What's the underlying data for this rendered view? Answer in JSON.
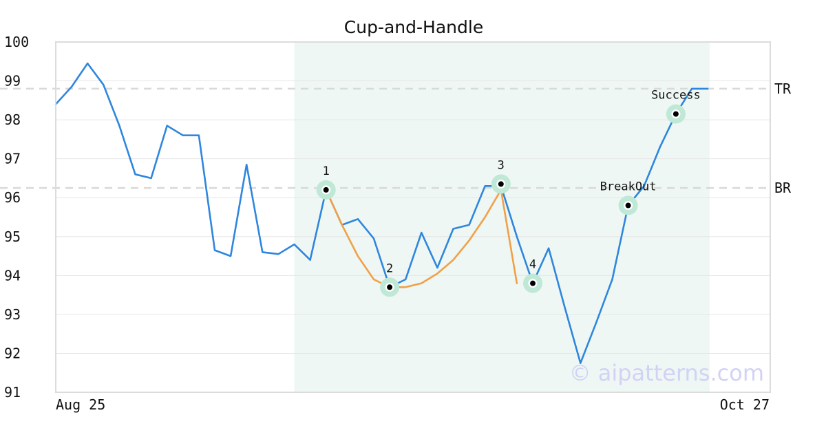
{
  "chart_data": {
    "type": "line",
    "title": "Cup-and-Handle",
    "ylim": [
      91,
      100
    ],
    "yticks": [
      "91",
      "92",
      "93",
      "94",
      "95",
      "96",
      "97",
      "98",
      "99",
      "100"
    ],
    "x_first_label": "Aug 25",
    "x_last_label": "Oct 27",
    "grid": "horizontal",
    "series": [
      {
        "role": "price",
        "color": "#2e86de",
        "values": [
          98.4,
          98.85,
          99.45,
          98.9,
          97.85,
          96.6,
          96.5,
          97.85,
          97.6,
          97.6,
          94.65,
          94.5,
          96.85,
          94.6,
          94.55,
          94.8,
          94.4,
          96.2,
          95.3,
          95.45,
          94.95,
          93.7,
          93.9,
          95.1,
          94.2,
          95.2,
          95.3,
          96.3,
          96.3,
          95.0,
          93.8,
          94.7,
          93.2,
          91.75,
          92.8,
          93.9,
          95.8,
          96.3,
          97.3,
          98.15,
          98.8,
          98.8
        ]
      },
      {
        "role": "cup-fit",
        "color": "#f0a048",
        "start_index": 17,
        "values": [
          96.2,
          95.3,
          94.5,
          93.9,
          93.7,
          93.7,
          93.8,
          94.05,
          94.4,
          94.9,
          95.5,
          96.2,
          93.8
        ]
      }
    ],
    "levels": [
      {
        "label": "TR",
        "value": 98.8
      },
      {
        "label": "BR",
        "value": 96.25
      }
    ],
    "pattern_region": {
      "start_index": 15,
      "end_index": 41
    },
    "points": [
      {
        "label": "1",
        "index": 17,
        "value": 96.2
      },
      {
        "label": "2",
        "index": 21,
        "value": 93.7
      },
      {
        "label": "3",
        "index": 28,
        "value": 96.35
      },
      {
        "label": "4",
        "index": 30,
        "value": 93.8
      },
      {
        "label": "BreakOut",
        "index": 36,
        "value": 95.8
      },
      {
        "label": "Success",
        "index": 39,
        "value": 98.15
      }
    ],
    "watermark": "© aipatterns.com",
    "colors": {
      "price": "#2e86de",
      "cup_fit": "#f0a048",
      "region": "#eef7f3",
      "marker_halo": "#bfe8d6",
      "level_line": "#d9d9d9",
      "grid": "#e6e6e6",
      "watermark": "#d2d2f6"
    }
  }
}
